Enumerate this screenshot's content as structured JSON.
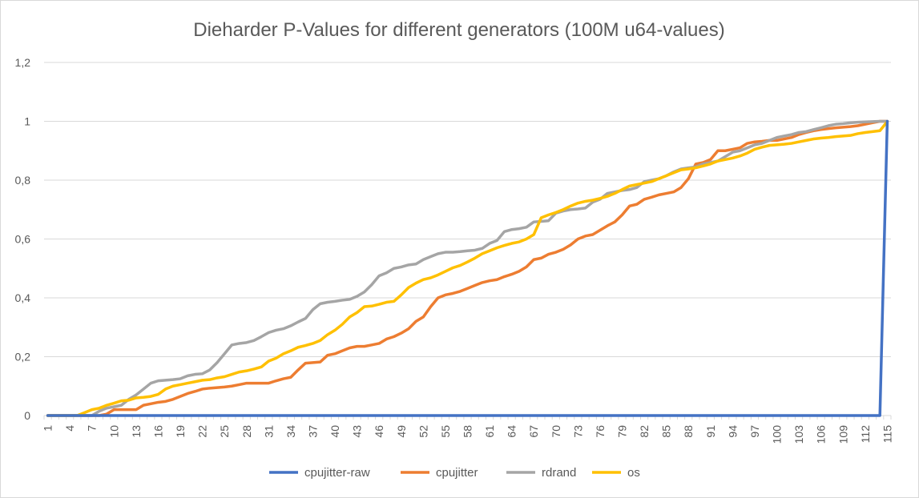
{
  "chart_data": {
    "type": "line",
    "title": "Dieharder P-Values for different generators (100M u64-values)",
    "xlabel": "",
    "ylabel": "",
    "ylim": [
      0,
      1.2
    ],
    "yticks": [
      0,
      0.2,
      0.4,
      0.6,
      0.8,
      1,
      1.2
    ],
    "ytick_labels": [
      "0",
      "0,2",
      "0,4",
      "0,6",
      "0,8",
      "1",
      "1,2"
    ],
    "x_count": 115,
    "xticks": [
      1,
      4,
      7,
      10,
      13,
      16,
      19,
      22,
      25,
      28,
      31,
      34,
      37,
      40,
      43,
      46,
      49,
      52,
      55,
      58,
      61,
      64,
      67,
      70,
      73,
      76,
      79,
      82,
      85,
      88,
      91,
      94,
      97,
      100,
      103,
      106,
      109,
      112,
      115
    ],
    "grid": "horizontal",
    "legend_position": "bottom",
    "series": [
      {
        "name": "cpujitter-raw",
        "color": "#4472C4",
        "values": [
          0,
          0,
          0,
          0,
          0,
          0,
          0,
          0,
          0,
          0,
          0,
          0,
          0,
          0,
          0,
          0,
          0,
          0,
          0,
          0,
          0,
          0,
          0,
          0,
          0,
          0,
          0,
          0,
          0,
          0,
          0,
          0,
          0,
          0,
          0,
          0,
          0,
          0,
          0,
          0,
          0,
          0,
          0,
          0,
          0,
          0,
          0,
          0,
          0,
          0,
          0,
          0,
          0,
          0,
          0,
          0,
          0,
          0,
          0,
          0,
          0,
          0,
          0,
          0,
          0,
          0,
          0,
          0,
          0,
          0,
          0,
          0,
          0,
          0,
          0,
          0,
          0,
          0,
          0,
          0,
          0,
          0,
          0,
          0,
          0,
          0,
          0,
          0,
          0,
          0,
          0,
          0,
          0,
          0,
          0,
          0,
          0,
          0,
          0,
          0,
          0,
          0,
          0,
          0,
          0,
          0,
          0,
          0,
          0,
          0,
          0,
          0,
          0,
          0,
          1
        ]
      },
      {
        "name": "cpujitter",
        "color": "#ED7D31",
        "values": [
          0,
          0,
          0,
          0,
          0,
          0,
          0,
          0,
          0.005,
          0.02,
          0.02,
          0.02,
          0.02,
          0.035,
          0.04,
          0.045,
          0.048,
          0.055,
          0.065,
          0.075,
          0.082,
          0.09,
          0.093,
          0.095,
          0.097,
          0.1,
          0.105,
          0.11,
          0.11,
          0.11,
          0.11,
          0.118,
          0.125,
          0.13,
          0.155,
          0.178,
          0.18,
          0.182,
          0.205,
          0.21,
          0.22,
          0.23,
          0.235,
          0.235,
          0.24,
          0.245,
          0.26,
          0.268,
          0.28,
          0.295,
          0.32,
          0.335,
          0.37,
          0.4,
          0.41,
          0.415,
          0.422,
          0.432,
          0.442,
          0.452,
          0.458,
          0.462,
          0.472,
          0.48,
          0.49,
          0.505,
          0.53,
          0.535,
          0.548,
          0.555,
          0.565,
          0.58,
          0.6,
          0.61,
          0.615,
          0.63,
          0.645,
          0.658,
          0.682,
          0.712,
          0.718,
          0.735,
          0.742,
          0.75,
          0.755,
          0.76,
          0.775,
          0.805,
          0.855,
          0.86,
          0.87,
          0.9,
          0.9,
          0.905,
          0.91,
          0.925,
          0.93,
          0.932,
          0.935,
          0.935,
          0.94,
          0.945,
          0.955,
          0.962,
          0.968,
          0.972,
          0.975,
          0.978,
          0.98,
          0.982,
          0.985,
          0.99,
          0.995,
          1.0,
          1.0
        ]
      },
      {
        "name": "rdrand",
        "color": "#A5A5A5",
        "values": [
          0,
          0,
          0,
          0,
          0,
          0,
          0,
          0.015,
          0.025,
          0.03,
          0.035,
          0.055,
          0.07,
          0.09,
          0.11,
          0.118,
          0.12,
          0.122,
          0.125,
          0.135,
          0.14,
          0.142,
          0.155,
          0.18,
          0.21,
          0.24,
          0.245,
          0.248,
          0.255,
          0.268,
          0.282,
          0.29,
          0.295,
          0.305,
          0.318,
          0.33,
          0.36,
          0.38,
          0.385,
          0.388,
          0.392,
          0.395,
          0.405,
          0.42,
          0.445,
          0.475,
          0.485,
          0.5,
          0.505,
          0.512,
          0.515,
          0.53,
          0.54,
          0.55,
          0.555,
          0.555,
          0.557,
          0.56,
          0.562,
          0.568,
          0.585,
          0.595,
          0.625,
          0.632,
          0.635,
          0.64,
          0.658,
          0.66,
          0.662,
          0.688,
          0.695,
          0.7,
          0.702,
          0.705,
          0.725,
          0.735,
          0.755,
          0.76,
          0.765,
          0.768,
          0.775,
          0.795,
          0.8,
          0.805,
          0.815,
          0.828,
          0.838,
          0.842,
          0.845,
          0.855,
          0.86,
          0.865,
          0.88,
          0.895,
          0.9,
          0.91,
          0.92,
          0.925,
          0.935,
          0.945,
          0.95,
          0.955,
          0.962,
          0.965,
          0.972,
          0.978,
          0.985,
          0.99,
          0.992,
          0.995,
          0.997,
          0.998,
          0.999,
          1.0,
          1.0
        ]
      },
      {
        "name": "os",
        "color": "#FFC000",
        "values": [
          0,
          0,
          0,
          0,
          0,
          0.01,
          0.02,
          0.025,
          0.035,
          0.042,
          0.05,
          0.052,
          0.06,
          0.062,
          0.065,
          0.072,
          0.09,
          0.1,
          0.105,
          0.11,
          0.115,
          0.12,
          0.122,
          0.128,
          0.132,
          0.14,
          0.148,
          0.152,
          0.158,
          0.165,
          0.185,
          0.195,
          0.21,
          0.22,
          0.232,
          0.238,
          0.245,
          0.255,
          0.275,
          0.29,
          0.31,
          0.335,
          0.35,
          0.37,
          0.372,
          0.378,
          0.385,
          0.388,
          0.41,
          0.435,
          0.45,
          0.462,
          0.468,
          0.478,
          0.49,
          0.502,
          0.51,
          0.522,
          0.535,
          0.55,
          0.56,
          0.57,
          0.578,
          0.585,
          0.59,
          0.6,
          0.615,
          0.672,
          0.682,
          0.69,
          0.7,
          0.712,
          0.722,
          0.728,
          0.732,
          0.738,
          0.745,
          0.755,
          0.768,
          0.78,
          0.785,
          0.79,
          0.795,
          0.805,
          0.815,
          0.825,
          0.835,
          0.838,
          0.842,
          0.848,
          0.855,
          0.865,
          0.87,
          0.875,
          0.882,
          0.892,
          0.905,
          0.912,
          0.918,
          0.92,
          0.922,
          0.925,
          0.93,
          0.935,
          0.94,
          0.943,
          0.945,
          0.948,
          0.95,
          0.952,
          0.958,
          0.962,
          0.965,
          0.968,
          0.999
        ]
      }
    ]
  }
}
